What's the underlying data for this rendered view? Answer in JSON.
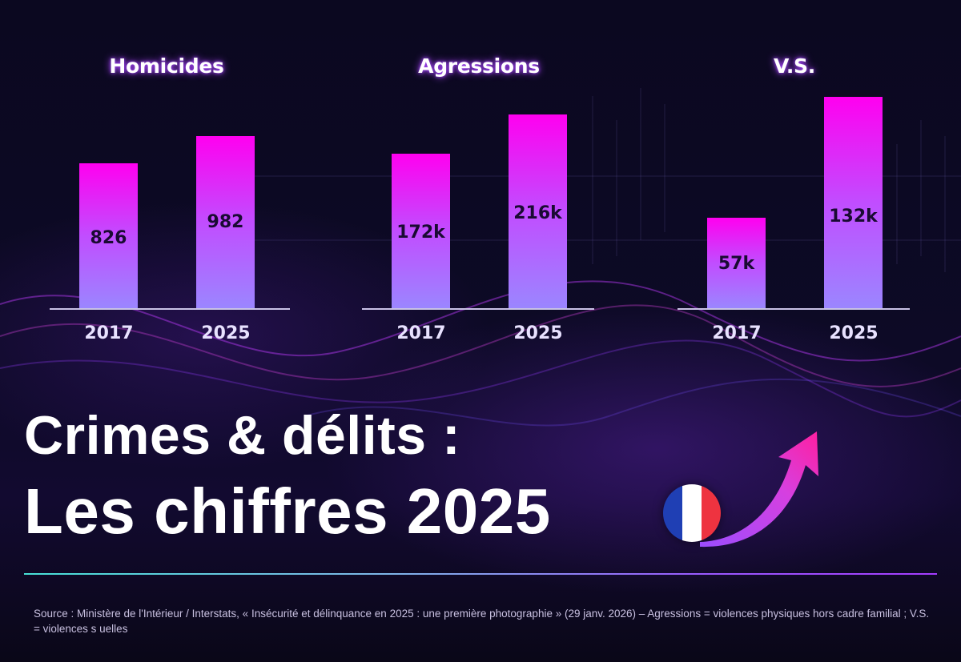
{
  "chart_data": [
    {
      "type": "bar",
      "title": "Homicides",
      "categories": [
        "2017",
        "2025"
      ],
      "values": [
        826,
        982
      ],
      "value_labels": [
        "826",
        "982"
      ]
    },
    {
      "type": "bar",
      "title": "Agressions",
      "categories": [
        "2017",
        "2025"
      ],
      "values": [
        172000,
        216000
      ],
      "value_labels": [
        "172k",
        "216k"
      ]
    },
    {
      "type": "bar",
      "title": "V.S.",
      "categories": [
        "2017",
        "2025"
      ],
      "values": [
        57000,
        132000
      ],
      "value_labels": [
        "57k",
        "132k"
      ]
    }
  ],
  "headline": {
    "line1": "Crimes & délits :",
    "line2": "Les chiffres 2025"
  },
  "colors": {
    "bar_top": "#ff00f0",
    "bar_bottom": "#9b86ff",
    "background": "#0a0718",
    "flag_blue": "#1f3fb4",
    "flag_white": "#ffffff",
    "flag_red": "#ee3340"
  },
  "icons": [
    "france-flag-icon",
    "rising-arrow-icon"
  ],
  "source": "Source : Ministère de l'Intérieur / Interstats, « Insécurité et délinquance en 2025 : une première photographie » (29 janv. 2026) – Agressions = violences physiques hors cadre familial ; V.S. = violences s   uelles"
}
